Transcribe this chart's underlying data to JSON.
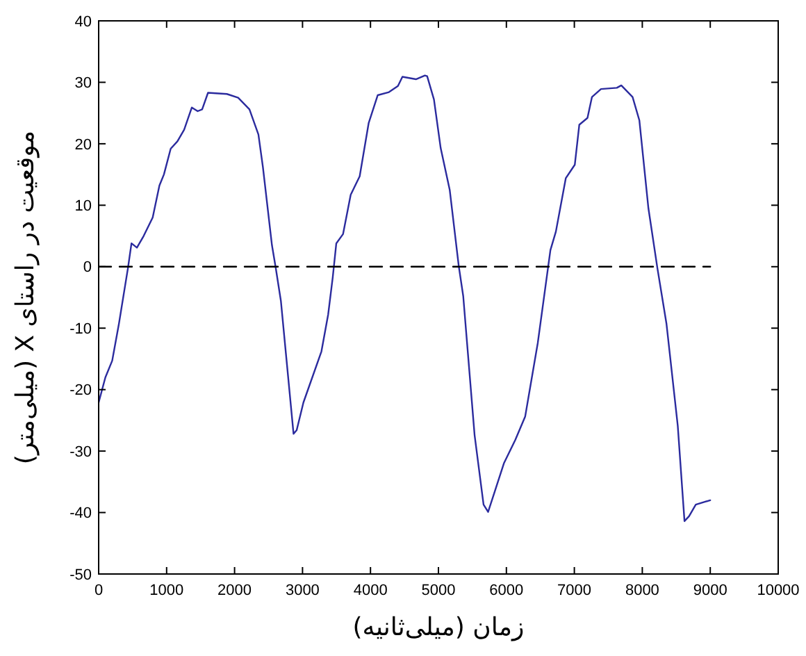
{
  "chart_data": {
    "type": "line",
    "xlabel": "زمان (میلی‌ثانیه)",
    "ylabel": "موقعیت در راستای X (میلی‌متر)",
    "xlim": [
      0,
      10000
    ],
    "xticks": [
      0,
      1000,
      2000,
      3000,
      4000,
      5000,
      6000,
      7000,
      8000,
      9000,
      10000
    ],
    "ylim": [
      -50,
      40
    ],
    "yticks": [
      -50,
      -40,
      -30,
      -20,
      -10,
      0,
      10,
      20,
      30,
      40
    ],
    "grid": false,
    "marker": "none",
    "series": [
      {
        "color": "#2b2b9e",
        "line_style": "solid",
        "x": [
          0,
          99,
          199,
          298,
          430,
          483,
          563,
          662,
          795,
          894,
          960,
          1060,
          1159,
          1258,
          1371,
          1457,
          1523,
          1609,
          1887,
          2053,
          2219,
          2351,
          2417,
          2550,
          2603,
          2682,
          2868,
          2914,
          3013,
          3278,
          3377,
          3444,
          3497,
          3596,
          3709,
          3841,
          3974,
          4106,
          4272,
          4404,
          4470,
          4669,
          4801,
          4834,
          4934,
          5033,
          5166,
          5299,
          5365,
          5532,
          5664,
          5731,
          5831,
          5963,
          6130,
          6276,
          6462,
          6648,
          6728,
          6874,
          7007,
          7073,
          7193,
          7259,
          7392,
          7625,
          7691,
          7857,
          7957,
          8090,
          8223,
          8356,
          8522,
          8621,
          8688,
          8787,
          9000
        ],
        "values": [
          -22.1,
          -18,
          -15.3,
          -9.3,
          -0.3,
          3.8,
          3.1,
          5,
          8,
          13.2,
          15,
          19.2,
          20.4,
          22.3,
          25.9,
          25.3,
          25.6,
          28.3,
          28.1,
          27.5,
          25.6,
          21.5,
          16.2,
          3.5,
          0,
          -5.6,
          -27.2,
          -26.6,
          -22.1,
          -13.8,
          -7.8,
          -1.8,
          3.8,
          5.3,
          11.7,
          14.7,
          23.4,
          27.9,
          28.4,
          29.4,
          30.9,
          30.5,
          31.1,
          31,
          27.2,
          19.3,
          12.5,
          0.1,
          -4.8,
          -27.4,
          -38.7,
          -39.9,
          -36.5,
          -32,
          -28.2,
          -24.4,
          -12.4,
          2.7,
          5.7,
          14.4,
          16.6,
          23.1,
          24.2,
          27.6,
          28.9,
          29.1,
          29.5,
          27.6,
          23.8,
          9.5,
          -0.3,
          -9.3,
          -25.9,
          -41.4,
          -40.6,
          -38.7,
          -38
        ]
      },
      {
        "color": "#000000",
        "line_style": "dashed",
        "x": [
          0,
          9000
        ],
        "values": [
          0,
          0
        ]
      }
    ]
  }
}
